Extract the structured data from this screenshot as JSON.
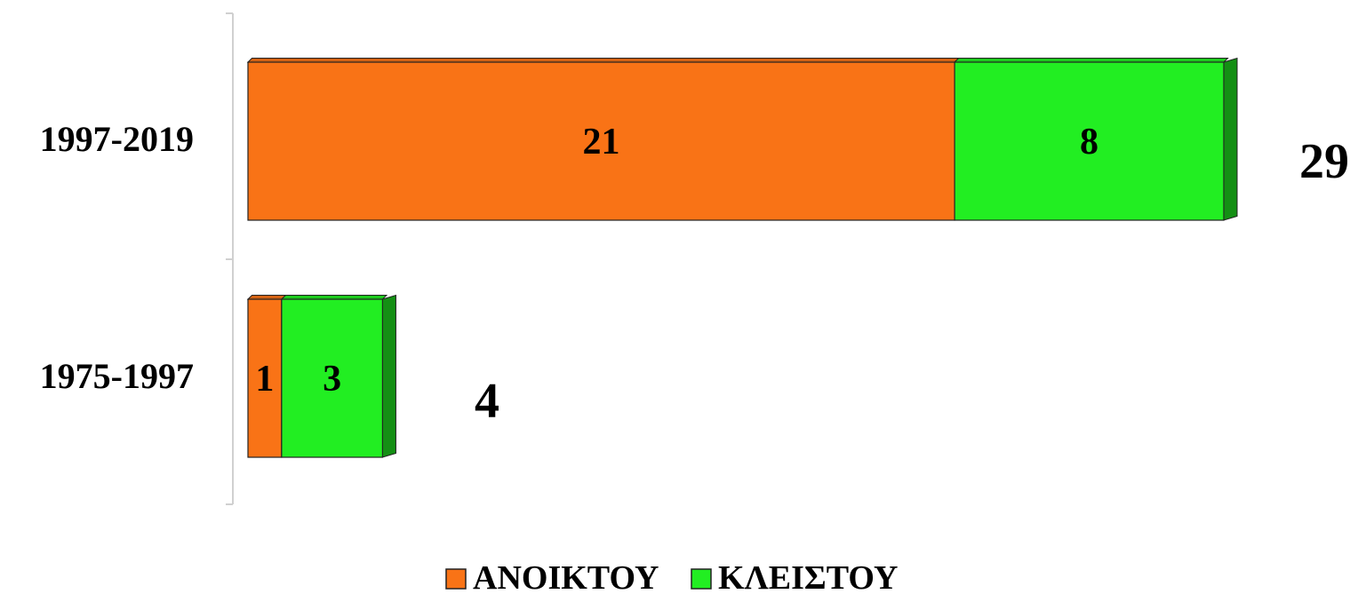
{
  "chart_data": {
    "type": "bar",
    "orientation": "horizontal",
    "stacked": true,
    "categories": [
      "1997-2019",
      "1975-1997"
    ],
    "series": [
      {
        "name": "ΑΝΟΙΚΤΟΥ",
        "values": [
          21,
          1
        ],
        "color": "#f97316"
      },
      {
        "name": "ΚΛΕΙΣΤΟΥ",
        "values": [
          8,
          3
        ],
        "color": "#22ee22"
      }
    ],
    "totals": [
      29,
      4
    ],
    "title": "",
    "xlabel": "",
    "ylabel": "",
    "xlim": [
      0,
      29
    ],
    "grid": false,
    "legend_position": "bottom"
  }
}
